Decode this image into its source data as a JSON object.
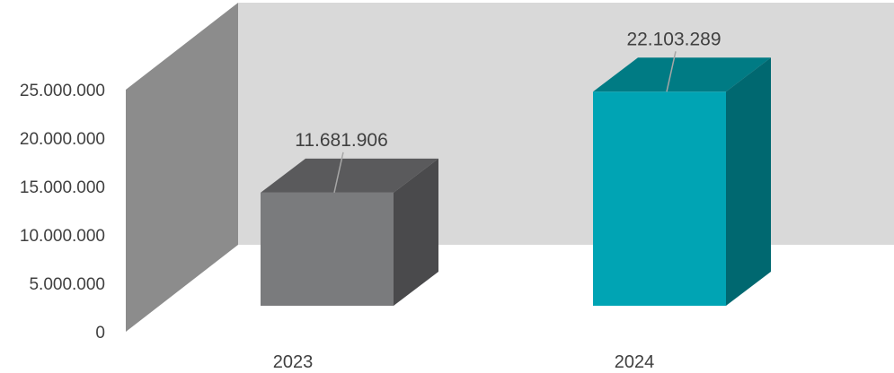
{
  "chart_data": {
    "type": "bar",
    "categories": [
      "2023",
      "2024"
    ],
    "values": [
      11681906,
      22103289
    ],
    "value_labels": [
      "11.681.906",
      "22.103.289"
    ],
    "ylim": [
      0,
      25000000
    ],
    "y_ticks": [
      0,
      5000000,
      10000000,
      15000000,
      20000000,
      25000000
    ],
    "y_tick_labels": [
      "0",
      "5.000.000",
      "10.000.000",
      "15.000.000",
      "20.000.000",
      "25.000.000"
    ],
    "title": "",
    "xlabel": "",
    "ylabel": "",
    "grid": false,
    "legend": "none",
    "colors": {
      "bar_2023_front": "#7a7b7d",
      "bar_2023_top": "#5a5a5c",
      "bar_2023_side": "#4a4a4c",
      "bar_2024_front": "#00a4b4",
      "bar_2024_top": "#007b84",
      "bar_2024_side": "#006870",
      "back_wall": "#d9d9d9",
      "side_wall": "#8c8c8c",
      "leader_line": "#a6a6a6"
    }
  }
}
